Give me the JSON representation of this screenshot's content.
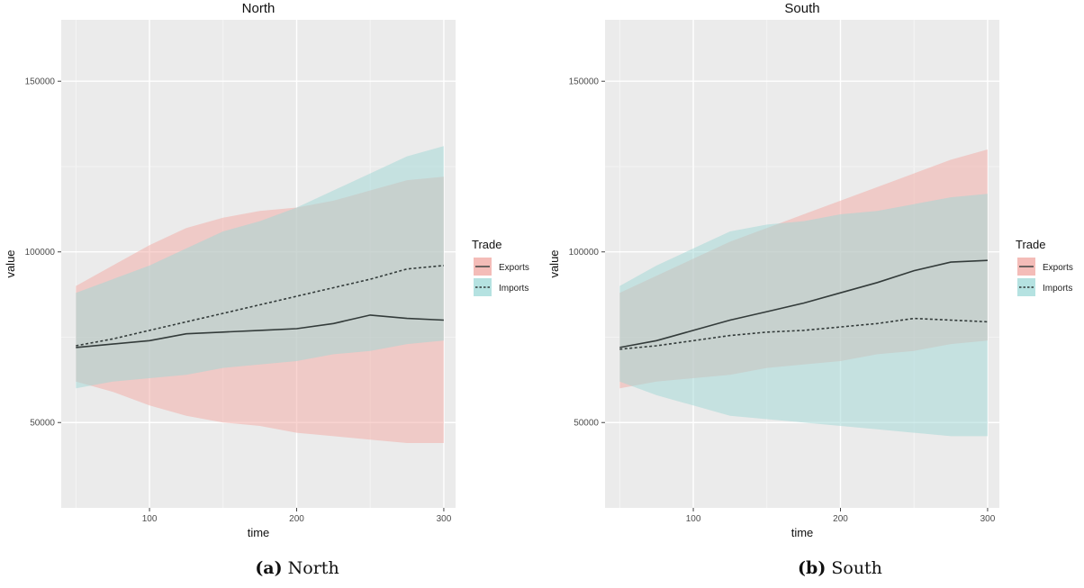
{
  "figure": {
    "captions": [
      {
        "tag": "(a)",
        "text": "North"
      },
      {
        "tag": "(b)",
        "text": "South"
      }
    ]
  },
  "chart_data": [
    {
      "type": "line",
      "title": "North",
      "xlabel": "time",
      "ylabel": "value",
      "xlim": [
        40,
        308
      ],
      "ylim": [
        25000,
        168000
      ],
      "xticks": [
        100,
        200,
        300
      ],
      "xtick_labels": [
        "100",
        "200",
        "300"
      ],
      "yticks": [
        50000,
        100000,
        150000
      ],
      "ytick_labels": [
        "50000",
        "100000",
        "150000"
      ],
      "grid": true,
      "legend": {
        "title": "Trade",
        "position": "right"
      },
      "x": [
        50,
        75,
        100,
        125,
        150,
        175,
        200,
        225,
        250,
        275,
        300
      ],
      "series": [
        {
          "name": "Exports",
          "linestyle": "solid",
          "band_color": "#f4a9a4",
          "values": [
            72000,
            73000,
            74000,
            76000,
            76500,
            77000,
            77500,
            79000,
            81500,
            80500,
            80000
          ],
          "band_lower": [
            62000,
            59000,
            55000,
            52000,
            50000,
            49000,
            47000,
            46000,
            45000,
            44000,
            44000
          ],
          "band_upper": [
            90000,
            96000,
            102000,
            107000,
            110000,
            112000,
            113000,
            115000,
            118000,
            121000,
            122000
          ]
        },
        {
          "name": "Imports",
          "linestyle": "dotted",
          "band_color": "#9fd7d6",
          "values": [
            72500,
            74500,
            77000,
            79500,
            82000,
            84500,
            87000,
            89500,
            92000,
            95000,
            96000
          ],
          "band_lower": [
            60000,
            62000,
            63000,
            64000,
            66000,
            67000,
            68000,
            70000,
            71000,
            73000,
            74000
          ],
          "band_upper": [
            88000,
            92000,
            96000,
            101000,
            106000,
            109000,
            113000,
            118000,
            123000,
            128000,
            131000
          ]
        }
      ]
    },
    {
      "type": "line",
      "title": "South",
      "xlabel": "time",
      "ylabel": "value",
      "xlim": [
        40,
        308
      ],
      "ylim": [
        25000,
        168000
      ],
      "xticks": [
        100,
        200,
        300
      ],
      "xtick_labels": [
        "100",
        "200",
        "300"
      ],
      "yticks": [
        50000,
        100000,
        150000
      ],
      "ytick_labels": [
        "50000",
        "100000",
        "150000"
      ],
      "grid": true,
      "legend": {
        "title": "Trade",
        "position": "right"
      },
      "x": [
        50,
        75,
        100,
        125,
        150,
        175,
        200,
        225,
        250,
        275,
        300
      ],
      "series": [
        {
          "name": "Exports",
          "linestyle": "solid",
          "band_color": "#f4a9a4",
          "values": [
            72000,
            74000,
            77000,
            80000,
            82500,
            85000,
            88000,
            91000,
            94500,
            97000,
            97500
          ],
          "band_lower": [
            60000,
            62000,
            63000,
            64000,
            66000,
            67000,
            68000,
            70000,
            71000,
            73000,
            74000
          ],
          "band_upper": [
            88000,
            93000,
            98000,
            103000,
            107000,
            111000,
            115000,
            119000,
            123000,
            127000,
            130000
          ]
        },
        {
          "name": "Imports",
          "linestyle": "dotted",
          "band_color": "#9fd7d6",
          "values": [
            71500,
            72500,
            74000,
            75500,
            76500,
            77000,
            78000,
            79000,
            80500,
            80000,
            79500
          ],
          "band_lower": [
            62000,
            58000,
            55000,
            52000,
            51000,
            50000,
            49000,
            48000,
            47000,
            46000,
            46000
          ],
          "band_upper": [
            90000,
            96000,
            101000,
            106000,
            108000,
            109000,
            111000,
            112000,
            114000,
            116000,
            117000
          ]
        }
      ]
    }
  ]
}
